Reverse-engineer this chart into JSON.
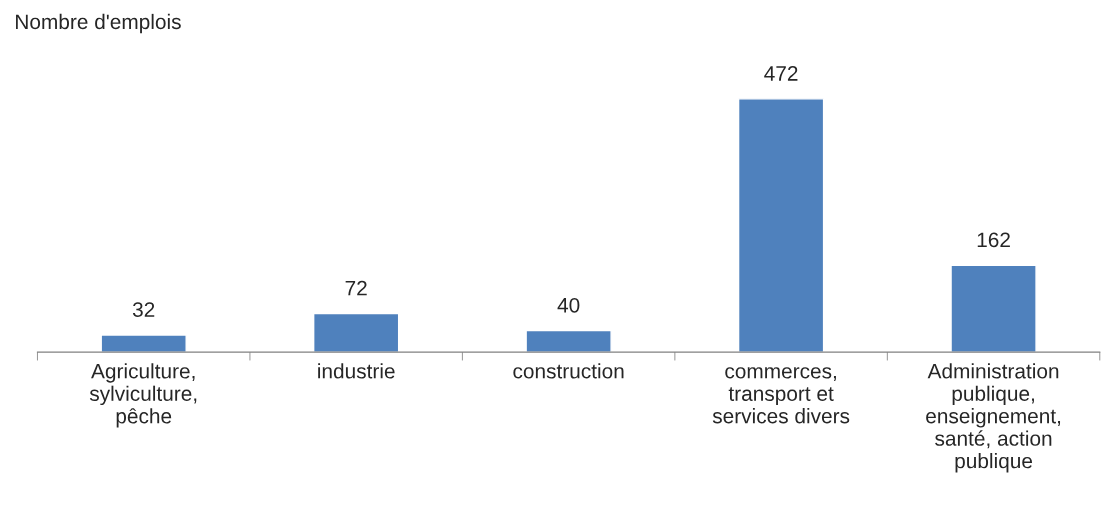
{
  "chart_data": {
    "type": "bar",
    "ylabel": "Nombre d'emplois",
    "categories": [
      "Agriculture,\nsylviculture,\npêche",
      "industrie",
      "construction",
      "commerces,\ntransport et\nservices divers",
      "Administration\npublique,\nenseignement,\nsanté, action\npublique"
    ],
    "values": [
      32,
      72,
      40,
      472,
      162
    ],
    "color": "#4f81bd",
    "data_labels": true,
    "grid": false
  }
}
